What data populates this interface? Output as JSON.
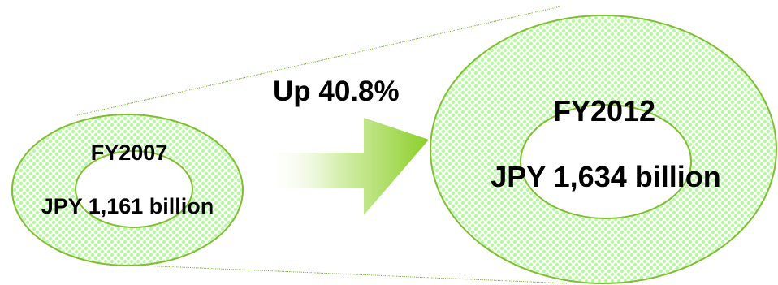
{
  "colors": {
    "ring_stroke": "#7fbf2f",
    "ring_dot": "#b8f5a8",
    "ring_bg": "#f6fff0",
    "arrow_end": "#8ccf2a",
    "arrow_start": "#ffffff",
    "connector": "#6fae27",
    "text": "#000000"
  },
  "left_ring": {
    "year": "FY2007",
    "amount": "JPY 1,161 billion"
  },
  "right_ring": {
    "year": "FY2012",
    "amount": "JPY 1,634 billion"
  },
  "growth": {
    "label": "Up 40.8%",
    "icon": "growth-arrow-icon"
  }
}
